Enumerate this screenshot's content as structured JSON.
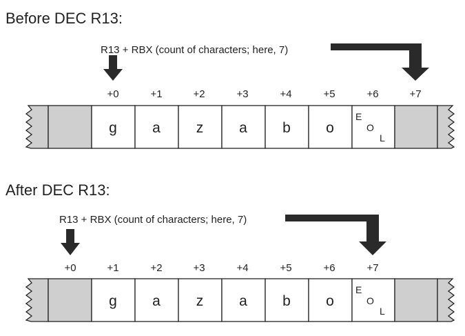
{
  "colors": {
    "outline": "#222222",
    "arrow": "#2a2a2a",
    "filled_cell": "#cfcfcf",
    "empty_cell": "#ffffff"
  },
  "panels": [
    {
      "title": "Before DEC R13:",
      "pointer_caption": "R13 + RBX (count of characters; here, 7)",
      "offsets": [
        "+0",
        "+1",
        "+2",
        "+3",
        "+4",
        "+5",
        "+6",
        "+7"
      ],
      "cells": [
        "",
        "g",
        "a",
        "z",
        "a",
        "b",
        "o",
        "EOL",
        ""
      ],
      "eol": [
        "E",
        "O",
        "L"
      ],
      "r13_points_to_offset": 0,
      "end_points_to_offset": 7
    },
    {
      "title": "After DEC R13:",
      "pointer_caption": "R13 + RBX (count of characters; here, 7)",
      "offsets": [
        "+0",
        "+1",
        "+2",
        "+3",
        "+4",
        "+5",
        "+6",
        "+7"
      ],
      "cells": [
        "",
        "g",
        "a",
        "z",
        "a",
        "b",
        "o",
        "EOL",
        ""
      ],
      "eol": [
        "E",
        "O",
        "L"
      ],
      "r13_points_to_offset": 0,
      "end_points_to_offset": 7
    }
  ]
}
